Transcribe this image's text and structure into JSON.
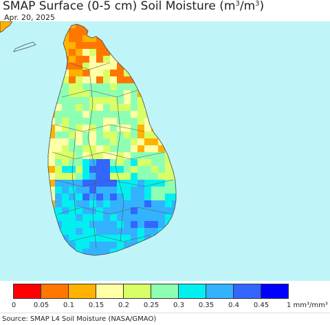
{
  "header": {
    "title_main": "SMAP Surface (0-5 cm) Soil Moisture (m",
    "title_sup1": "3",
    "title_mid": "/m",
    "title_sup2": "3",
    "title_end": ")",
    "date": "Apr. 20, 2025"
  },
  "map": {
    "region": "Sri Lanka",
    "ocean_color": "#bff5f8",
    "boundary_color": "#555555"
  },
  "legend": {
    "colors": [
      "#ff0000",
      "#ff7700",
      "#ffb200",
      "#ffffa6",
      "#d9ff66",
      "#8effb2",
      "#00f0f0",
      "#33b2ff",
      "#3366ff",
      "#0000ff"
    ],
    "ticks": [
      "0",
      "0.05",
      "0.1",
      "0.15",
      "0.2",
      "0.25",
      "0.3",
      "0.35",
      "0.4",
      "0.45",
      "1"
    ],
    "unit": "mm³/mm³"
  },
  "footer": {
    "source": "Source: SMAP L4 Soil Moisture (NASA/GMAO)"
  }
}
